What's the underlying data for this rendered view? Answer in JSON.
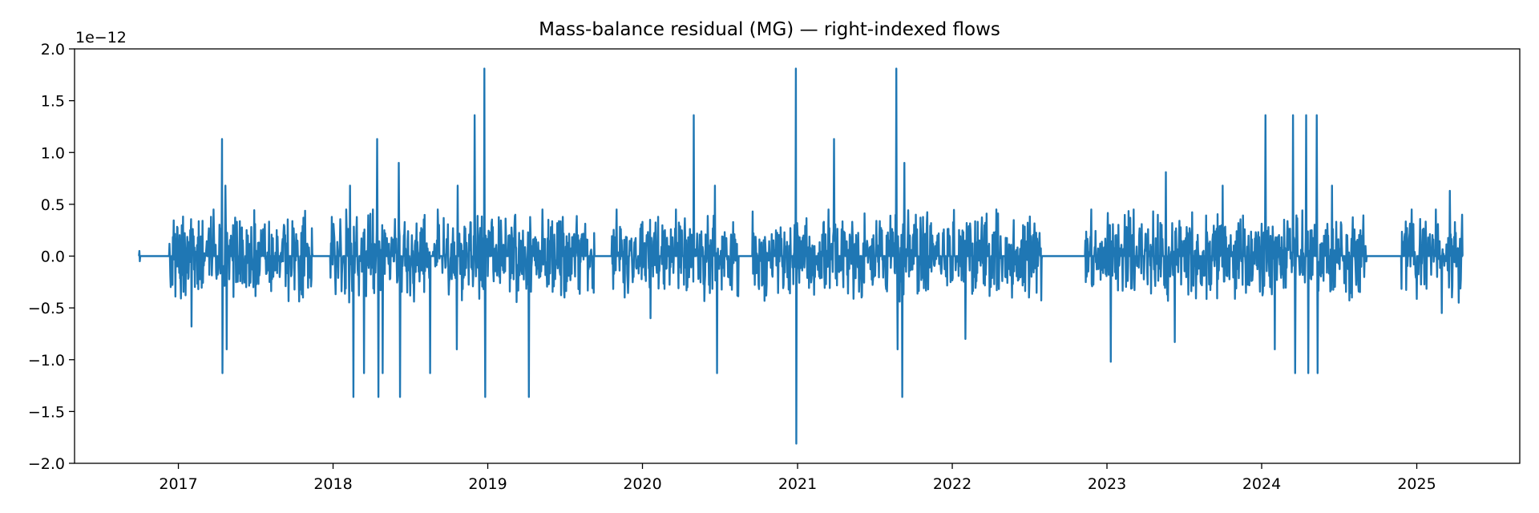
{
  "chart_data": {
    "type": "line",
    "title": "Mass-balance residual (MG) — right-indexed flows",
    "xlabel": "",
    "ylabel": "",
    "y_offset_label": "1e−12",
    "y_scale_exponent": -12,
    "xlim": [
      "2016-05-01",
      "2025-09-01"
    ],
    "ylim": [
      -2.0,
      2.0
    ],
    "grid": false,
    "legend": "none",
    "line_color": "#1f77b4",
    "x_ticks": [
      {
        "date": "2017-01-01",
        "label": "2017"
      },
      {
        "date": "2018-01-01",
        "label": "2018"
      },
      {
        "date": "2019-01-01",
        "label": "2019"
      },
      {
        "date": "2020-01-01",
        "label": "2020"
      },
      {
        "date": "2021-01-01",
        "label": "2021"
      },
      {
        "date": "2022-01-01",
        "label": "2022"
      },
      {
        "date": "2023-01-01",
        "label": "2023"
      },
      {
        "date": "2024-01-01",
        "label": "2024"
      },
      {
        "date": "2025-01-01",
        "label": "2025"
      }
    ],
    "y_ticks": [
      {
        "value": -2.0,
        "label": "−2.0"
      },
      {
        "value": -1.5,
        "label": "−1.5"
      },
      {
        "value": -1.0,
        "label": "−1.0"
      },
      {
        "value": -0.5,
        "label": "−0.5"
      },
      {
        "value": 0.0,
        "label": "0.0"
      },
      {
        "value": 0.5,
        "label": "0.5"
      },
      {
        "value": 1.0,
        "label": "1.0"
      },
      {
        "value": 1.5,
        "label": "1.5"
      },
      {
        "value": 2.0,
        "label": "2.0"
      }
    ],
    "series": [
      {
        "start_date": "2016-09-30",
        "end_date": "2025-04-20",
        "quiet_periods": [
          [
            "2016-09-30",
            "2016-12-10"
          ],
          [
            "2017-11-15",
            "2017-12-25"
          ],
          [
            "2019-09-10",
            "2019-10-20"
          ],
          [
            "2020-08-15",
            "2020-09-15"
          ],
          [
            "2022-08-01",
            "2022-11-10"
          ],
          [
            "2024-09-05",
            "2024-11-25"
          ]
        ],
        "points": [
          [
            "2016-10-01",
            0.05
          ],
          [
            "2016-10-02",
            -0.05
          ],
          [
            "2016-12-20",
            0.08
          ],
          [
            "2016-12-28",
            -0.1
          ],
          [
            "2017-02-01",
            -0.68
          ],
          [
            "2017-03-25",
            0.45
          ],
          [
            "2017-04-14",
            1.13
          ],
          [
            "2017-04-15",
            -1.13
          ],
          [
            "2017-04-22",
            0.68
          ],
          [
            "2017-04-25",
            -0.9
          ],
          [
            "2017-06-10",
            -0.3
          ],
          [
            "2017-07-15",
            0.25
          ],
          [
            "2017-11-01",
            0.12
          ],
          [
            "2018-01-10",
            -0.1
          ],
          [
            "2018-02-01",
            0.45
          ],
          [
            "2018-02-10",
            0.68
          ],
          [
            "2018-02-18",
            -1.36
          ],
          [
            "2018-03-15",
            -1.13
          ],
          [
            "2018-04-05",
            0.45
          ],
          [
            "2018-04-15",
            1.13
          ],
          [
            "2018-04-18",
            -1.36
          ],
          [
            "2018-04-28",
            -1.13
          ],
          [
            "2018-06-05",
            0.9
          ],
          [
            "2018-06-08",
            -1.36
          ],
          [
            "2018-08-18",
            -1.13
          ],
          [
            "2018-09-05",
            0.45
          ],
          [
            "2018-10-20",
            -0.9
          ],
          [
            "2018-10-22",
            0.68
          ],
          [
            "2018-12-01",
            1.36
          ],
          [
            "2018-12-24",
            1.81
          ],
          [
            "2018-12-26",
            -1.36
          ],
          [
            "2019-04-08",
            -1.36
          ],
          [
            "2019-05-10",
            0.45
          ],
          [
            "2019-07-01",
            -0.4
          ],
          [
            "2019-11-01",
            0.45
          ],
          [
            "2019-11-20",
            -0.4
          ],
          [
            "2020-01-20",
            -0.6
          ],
          [
            "2020-03-20",
            0.45
          ],
          [
            "2020-05-01",
            1.36
          ],
          [
            "2020-06-25",
            -1.13
          ],
          [
            "2020-06-20",
            0.68
          ],
          [
            "2020-12-01",
            0.23
          ],
          [
            "2020-12-28",
            1.81
          ],
          [
            "2020-12-29",
            -1.81
          ],
          [
            "2021-03-15",
            0.45
          ],
          [
            "2021-03-28",
            1.13
          ],
          [
            "2021-06-01",
            -0.4
          ],
          [
            "2021-08-22",
            1.81
          ],
          [
            "2021-08-25",
            -0.9
          ],
          [
            "2021-09-05",
            -1.36
          ],
          [
            "2021-09-10",
            0.9
          ],
          [
            "2022-02-01",
            -0.8
          ],
          [
            "2022-04-15",
            0.45
          ],
          [
            "2022-07-01",
            -0.4
          ],
          [
            "2022-11-25",
            0.45
          ],
          [
            "2023-01-10",
            -1.02
          ],
          [
            "2023-03-05",
            0.45
          ],
          [
            "2023-05-20",
            0.81
          ],
          [
            "2023-06-10",
            -0.83
          ],
          [
            "2023-10-01",
            0.68
          ],
          [
            "2024-01-10",
            1.36
          ],
          [
            "2024-02-01",
            -0.9
          ],
          [
            "2024-03-15",
            1.36
          ],
          [
            "2024-03-20",
            -1.13
          ],
          [
            "2024-04-15",
            1.36
          ],
          [
            "2024-04-20",
            -1.13
          ],
          [
            "2024-05-10",
            1.36
          ],
          [
            "2024-05-12",
            -1.13
          ],
          [
            "2024-06-15",
            0.68
          ],
          [
            "2024-08-01",
            -0.4
          ],
          [
            "2024-12-20",
            0.45
          ],
          [
            "2025-02-15",
            0.45
          ],
          [
            "2025-03-01",
            -0.55
          ],
          [
            "2025-03-20",
            0.63
          ],
          [
            "2025-04-10",
            -0.45
          ],
          [
            "2025-04-18",
            0.4
          ]
        ]
      }
    ]
  }
}
